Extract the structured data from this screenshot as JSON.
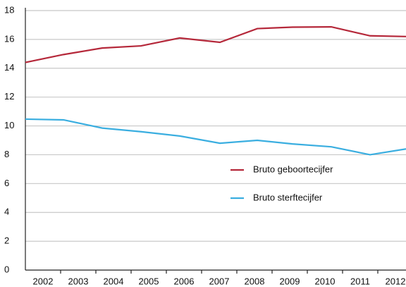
{
  "chart_data": {
    "type": "line",
    "x": [
      2001.5,
      2002.58,
      2003.68,
      2004.78,
      2005.88,
      2007.02,
      2008.08,
      2009.08,
      2010.18,
      2011.28,
      2012.3
    ],
    "series": [
      {
        "name": "Bruto geboortecijfer",
        "color": "#b5283a",
        "values": [
          14.4,
          14.95,
          15.4,
          15.55,
          16.1,
          15.8,
          16.75,
          16.85,
          16.87,
          16.25,
          16.2
        ]
      },
      {
        "name": "Bruto sterftecijfer",
        "color": "#3aaee0",
        "values": [
          10.47,
          10.42,
          9.85,
          9.6,
          9.3,
          8.8,
          9.0,
          8.75,
          8.55,
          8.0,
          8.4
        ]
      }
    ],
    "xlim": [
      2001.5,
      2012.3
    ],
    "xticks": [
      2002,
      2003,
      2004,
      2005,
      2006,
      2007,
      2008,
      2009,
      2010,
      2011,
      2012
    ],
    "ylim": [
      0,
      18
    ],
    "yticks": [
      0,
      2,
      4,
      6,
      8,
      10,
      12,
      14,
      16,
      18
    ],
    "grid": true
  }
}
